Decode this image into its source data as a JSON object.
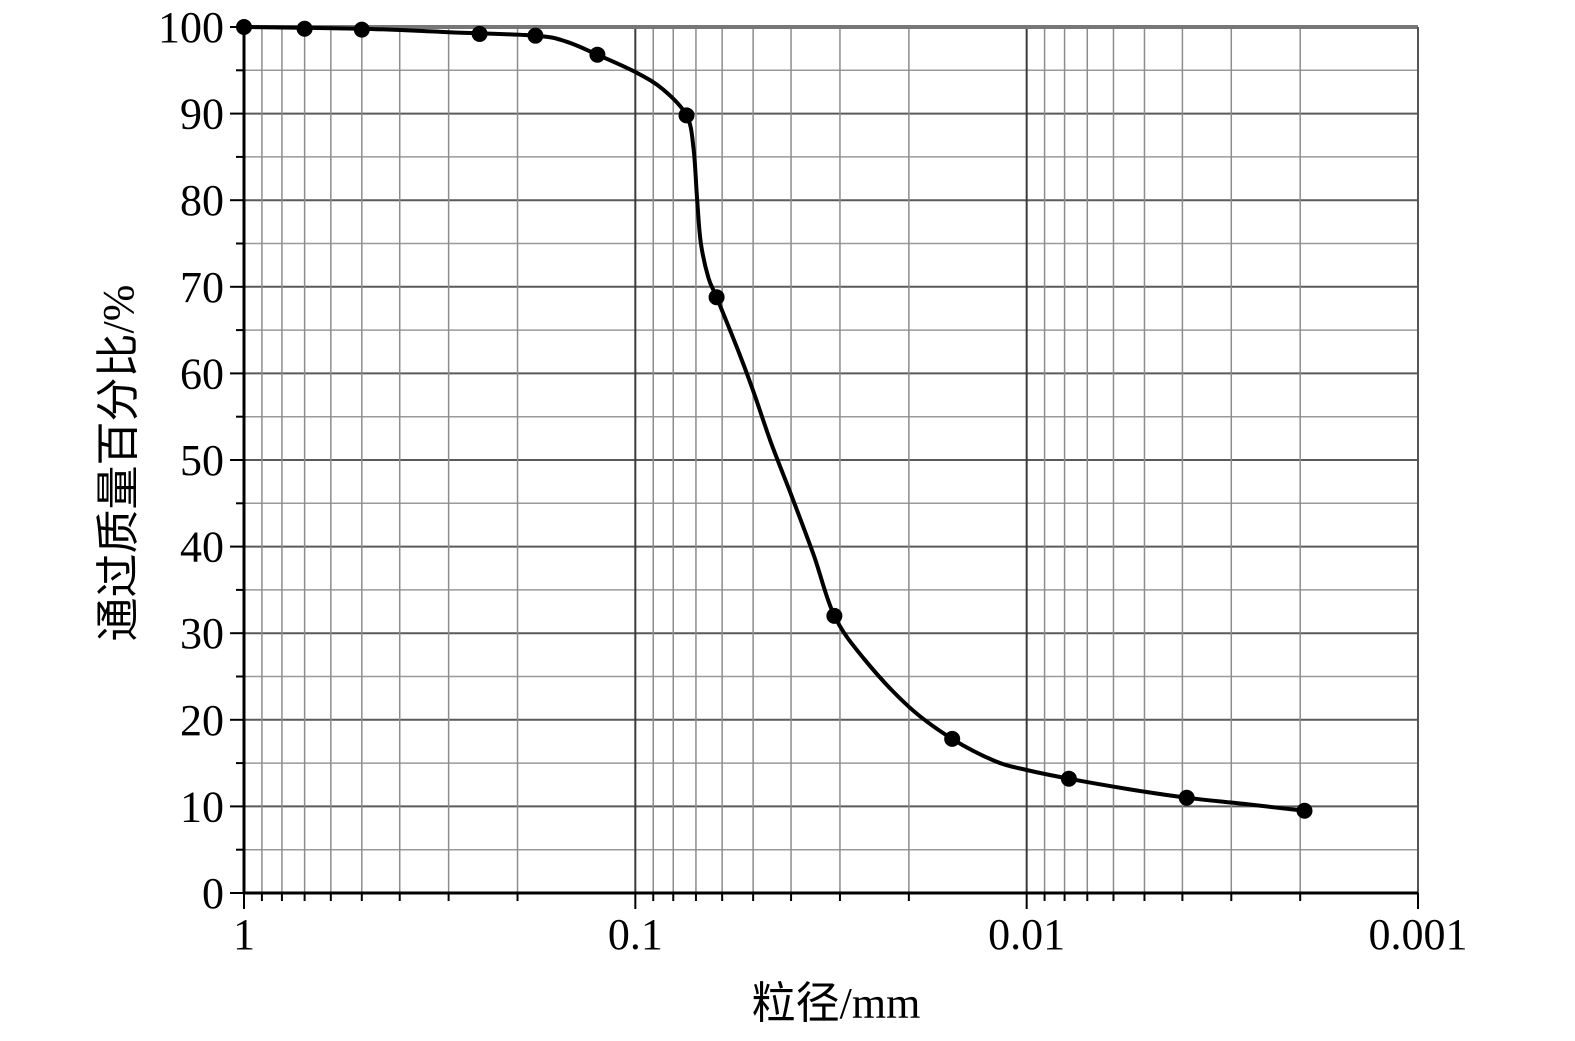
{
  "chart_data": {
    "type": "line",
    "title": "",
    "xlabel": "粒径/mm",
    "ylabel": "通过质量百分比/%",
    "x_scale": "log",
    "x_reversed": true,
    "xlim": [
      1,
      0.001
    ],
    "ylim": [
      0,
      100
    ],
    "grid": true,
    "legend": "none",
    "x_ticks": [
      {
        "value": 1,
        "label": "1"
      },
      {
        "value": 0.1,
        "label": "0.1"
      },
      {
        "value": 0.01,
        "label": "0.01"
      },
      {
        "value": 0.001,
        "label": "0.001"
      }
    ],
    "y_ticks": [
      {
        "value": 0,
        "label": "0"
      },
      {
        "value": 10,
        "label": "10"
      },
      {
        "value": 20,
        "label": "20"
      },
      {
        "value": 30,
        "label": "30"
      },
      {
        "value": 40,
        "label": "40"
      },
      {
        "value": 50,
        "label": "50"
      },
      {
        "value": 60,
        "label": "60"
      },
      {
        "value": 70,
        "label": "70"
      },
      {
        "value": 80,
        "label": "80"
      },
      {
        "value": 90,
        "label": "90"
      },
      {
        "value": 100,
        "label": "100"
      }
    ],
    "series": [
      {
        "color": "#000000",
        "points": [
          {
            "x": 1.0,
            "y": 100
          },
          {
            "x": 0.7,
            "y": 99.8
          },
          {
            "x": 0.5,
            "y": 99.7
          },
          {
            "x": 0.25,
            "y": 99.2
          },
          {
            "x": 0.18,
            "y": 99.0
          },
          {
            "x": 0.125,
            "y": 96.8
          },
          {
            "x": 0.074,
            "y": 89.8
          },
          {
            "x": 0.062,
            "y": 68.8
          },
          {
            "x": 0.031,
            "y": 32.0
          },
          {
            "x": 0.0155,
            "y": 17.8
          },
          {
            "x": 0.0078,
            "y": 13.2
          },
          {
            "x": 0.0039,
            "y": 11.0
          },
          {
            "x": 0.00195,
            "y": 9.5
          }
        ],
        "curve": [
          {
            "x": 1.0,
            "y": 100
          },
          {
            "x": 0.5,
            "y": 99.8
          },
          {
            "x": 0.3,
            "y": 99.4
          },
          {
            "x": 0.18,
            "y": 99.0
          },
          {
            "x": 0.15,
            "y": 98.3
          },
          {
            "x": 0.125,
            "y": 96.8
          },
          {
            "x": 0.1,
            "y": 94.8
          },
          {
            "x": 0.085,
            "y": 92.8
          },
          {
            "x": 0.074,
            "y": 89.8
          },
          {
            "x": 0.071,
            "y": 86
          },
          {
            "x": 0.0695,
            "y": 80
          },
          {
            "x": 0.068,
            "y": 75
          },
          {
            "x": 0.065,
            "y": 71
          },
          {
            "x": 0.062,
            "y": 68.8
          },
          {
            "x": 0.055,
            "y": 63
          },
          {
            "x": 0.05,
            "y": 58
          },
          {
            "x": 0.045,
            "y": 52
          },
          {
            "x": 0.04,
            "y": 46
          },
          {
            "x": 0.035,
            "y": 39
          },
          {
            "x": 0.031,
            "y": 32.0
          },
          {
            "x": 0.026,
            "y": 27
          },
          {
            "x": 0.02,
            "y": 21.5
          },
          {
            "x": 0.0155,
            "y": 17.8
          },
          {
            "x": 0.012,
            "y": 15.2
          },
          {
            "x": 0.01,
            "y": 14.2
          },
          {
            "x": 0.0078,
            "y": 13.2
          },
          {
            "x": 0.0055,
            "y": 12
          },
          {
            "x": 0.0039,
            "y": 11.0
          },
          {
            "x": 0.0028,
            "y": 10.3
          },
          {
            "x": 0.00195,
            "y": 9.5
          }
        ]
      }
    ]
  }
}
